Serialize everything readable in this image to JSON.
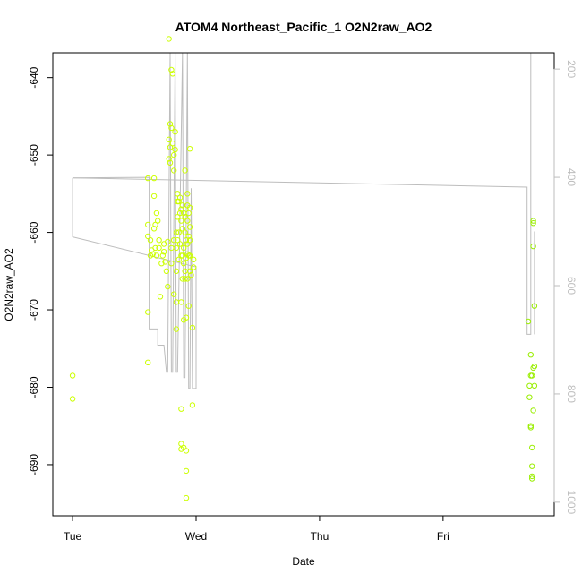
{
  "chart_data": {
    "type": "scatter",
    "title": "ATOM4 Northeast_Pacific_1 O2N2raw_AO2",
    "xlabel": "Date",
    "ylabel": "O2N2raw_AO2",
    "x_ticks": [
      {
        "day": 0,
        "label": "Tue"
      },
      {
        "day": 1,
        "label": "Wed"
      },
      {
        "day": 2,
        "label": "Thu"
      },
      {
        "day": 3,
        "label": "Fri"
      }
    ],
    "xlim": [
      -0.16,
      3.9
    ],
    "ylim": [
      -696.6,
      -636.8
    ],
    "y_ticks": [
      -640,
      -650,
      -660,
      -670,
      -680,
      -690
    ],
    "y2lim": [
      1025,
      170
    ],
    "y2_ticks": [
      200,
      400,
      600,
      800,
      1000
    ],
    "colors": {
      "frame": "#000000",
      "line": "#bdbdbd",
      "points_yellow": "#ccff00",
      "points_green": "#99ee00"
    },
    "series": [
      {
        "kind": "points",
        "color": "#ccff00",
        "points": [
          [
            0.0,
            -678.5
          ],
          [
            0.0,
            -681.5
          ],
          [
            0.61,
            -653
          ],
          [
            0.61,
            -659
          ],
          [
            0.61,
            -660.5
          ],
          [
            0.61,
            -670.3
          ],
          [
            0.61,
            -676.8
          ],
          [
            0.63,
            -661
          ],
          [
            0.63,
            -663
          ],
          [
            0.64,
            -662.3
          ],
          [
            0.65,
            -662.8
          ],
          [
            0.66,
            -655.3
          ],
          [
            0.66,
            -653
          ],
          [
            0.66,
            -659.5
          ],
          [
            0.67,
            -659
          ],
          [
            0.67,
            -662
          ],
          [
            0.68,
            -657.5
          ],
          [
            0.68,
            -663
          ],
          [
            0.69,
            -658.5
          ],
          [
            0.7,
            -661
          ],
          [
            0.7,
            -662
          ],
          [
            0.71,
            -668.3
          ],
          [
            0.72,
            -664
          ],
          [
            0.73,
            -663
          ],
          [
            0.74,
            -662.5
          ],
          [
            0.74,
            -661.5
          ],
          [
            0.75,
            -663.8
          ],
          [
            0.76,
            -665
          ],
          [
            0.77,
            -667
          ],
          [
            0.77,
            -661.2
          ],
          [
            0.78,
            -635
          ],
          [
            0.78,
            -648
          ],
          [
            0.78,
            -650.5
          ],
          [
            0.79,
            -651
          ],
          [
            0.79,
            -646
          ],
          [
            0.79,
            -649
          ],
          [
            0.8,
            -639
          ],
          [
            0.8,
            -646.5
          ],
          [
            0.8,
            -662
          ],
          [
            0.8,
            -664
          ],
          [
            0.81,
            -639.5
          ],
          [
            0.81,
            -648.5
          ],
          [
            0.82,
            -652
          ],
          [
            0.82,
            -650
          ],
          [
            0.82,
            -661
          ],
          [
            0.82,
            -668
          ],
          [
            0.83,
            -647
          ],
          [
            0.83,
            -649.3
          ],
          [
            0.84,
            -660
          ],
          [
            0.84,
            -662
          ],
          [
            0.84,
            -665
          ],
          [
            0.84,
            -669
          ],
          [
            0.84,
            -672.5
          ],
          [
            0.85,
            -655
          ],
          [
            0.85,
            -656
          ],
          [
            0.85,
            -658
          ],
          [
            0.85,
            -661
          ],
          [
            0.86,
            -656
          ],
          [
            0.86,
            -660
          ],
          [
            0.86,
            -663.5
          ],
          [
            0.87,
            -655.5
          ],
          [
            0.87,
            -657.5
          ],
          [
            0.87,
            -661.5
          ],
          [
            0.88,
            -657
          ],
          [
            0.88,
            -658.5
          ],
          [
            0.88,
            -663
          ],
          [
            0.88,
            -669
          ],
          [
            0.88,
            -682.8
          ],
          [
            0.88,
            -687.3
          ],
          [
            0.88,
            -688
          ],
          [
            0.89,
            -656.5
          ],
          [
            0.89,
            -659.5
          ],
          [
            0.89,
            -663
          ],
          [
            0.89,
            -666
          ],
          [
            0.9,
            -657.5
          ],
          [
            0.9,
            -662
          ],
          [
            0.9,
            -664
          ],
          [
            0.9,
            -671.3
          ],
          [
            0.9,
            -687.8
          ],
          [
            0.91,
            -652
          ],
          [
            0.91,
            -658
          ],
          [
            0.91,
            -660
          ],
          [
            0.91,
            -665
          ],
          [
            0.91,
            -666
          ],
          [
            0.92,
            -661
          ],
          [
            0.92,
            -663.3
          ],
          [
            0.92,
            -671
          ],
          [
            0.92,
            -688.2
          ],
          [
            0.92,
            -690.8
          ],
          [
            0.92,
            -694.3
          ],
          [
            0.93,
            -655
          ],
          [
            0.93,
            -656.5
          ],
          [
            0.93,
            -658.5
          ],
          [
            0.93,
            -661.5
          ],
          [
            0.93,
            -662.8
          ],
          [
            0.93,
            -666
          ],
          [
            0.94,
            -657.5
          ],
          [
            0.94,
            -660.5
          ],
          [
            0.94,
            -663
          ],
          [
            0.94,
            -669.5
          ],
          [
            0.95,
            -649.2
          ],
          [
            0.95,
            -656.8
          ],
          [
            0.95,
            -659.3
          ],
          [
            0.95,
            -661
          ],
          [
            0.95,
            -663
          ],
          [
            0.95,
            -665
          ],
          [
            0.96,
            -665.5
          ],
          [
            0.97,
            -672.3
          ],
          [
            0.97,
            -682.3
          ],
          [
            0.98,
            -664.5
          ],
          [
            0.98,
            -663.5
          ]
        ]
      },
      {
        "kind": "points",
        "color": "#99ee00",
        "points": [
          [
            3.69,
            -671.5
          ],
          [
            3.7,
            -679.8
          ],
          [
            3.7,
            -681.3
          ],
          [
            3.71,
            -675.8
          ],
          [
            3.71,
            -678.5
          ],
          [
            3.71,
            -685.2
          ],
          [
            3.71,
            -685.0
          ],
          [
            3.72,
            -678.5
          ],
          [
            3.72,
            -687.8
          ],
          [
            3.72,
            -690.2
          ],
          [
            3.72,
            -691.5
          ],
          [
            3.72,
            -691.8
          ],
          [
            3.73,
            -683
          ],
          [
            3.73,
            -658.5
          ],
          [
            3.73,
            -658.8
          ],
          [
            3.73,
            -661.8
          ],
          [
            3.74,
            -669.5
          ],
          [
            3.74,
            -677.3
          ],
          [
            3.74,
            -679.8
          ],
          [
            3.73,
            -677.5
          ]
        ]
      },
      {
        "kind": "line",
        "color": "#bdbdbd",
        "points": [
          [
            0.0,
            401
          ],
          [
            0.0,
            510
          ],
          [
            0.0,
            510
          ],
          [
            0.99,
            565
          ],
          [
            1.0,
            565
          ],
          [
            1.0,
            790
          ],
          [
            0.97,
            790
          ],
          [
            0.96,
            420
          ],
          [
            0.95,
            790
          ],
          [
            0.94,
            790
          ],
          [
            0.93,
            170
          ],
          [
            0.91,
            770
          ],
          [
            0.9,
            770
          ],
          [
            0.89,
            170
          ],
          [
            0.85,
            760
          ],
          [
            0.84,
            760
          ],
          [
            0.83,
            170
          ],
          [
            0.81,
            760
          ],
          [
            0.8,
            760
          ],
          [
            0.79,
            170
          ],
          [
            0.77,
            760
          ],
          [
            0.76,
            760
          ],
          [
            0.74,
            710
          ],
          [
            0.69,
            710
          ],
          [
            0.69,
            680
          ],
          [
            0.63,
            680
          ],
          [
            0.62,
            680
          ],
          [
            0.62,
            400
          ],
          [
            0.62,
            400
          ],
          [
            0.0,
            401
          ]
        ]
      },
      {
        "kind": "line",
        "color": "#bdbdbd",
        "points": [
          [
            0.0,
            401
          ],
          [
            3.68,
            418
          ],
          [
            3.68,
            690
          ],
          [
            3.71,
            690
          ],
          [
            3.71,
            170
          ]
        ]
      },
      {
        "kind": "line",
        "color": "#bdbdbd",
        "points": [
          [
            3.74,
            500
          ],
          [
            3.74,
            690
          ]
        ]
      }
    ]
  }
}
